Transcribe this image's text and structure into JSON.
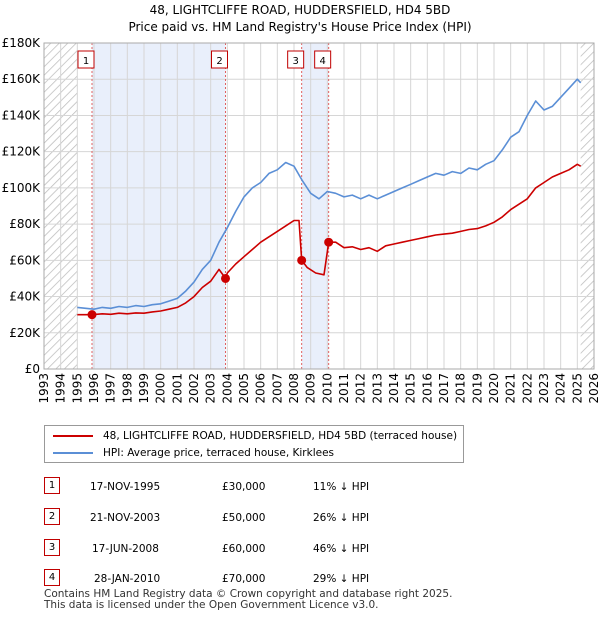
{
  "title_line1": "48, LIGHTCLIFFE ROAD, HUDDERSFIELD, HD4 5BD",
  "title_line2": "Price paid vs. HM Land Registry's House Price Index (HPI)",
  "legend": {
    "property_label": "48, LIGHTCLIFFE ROAD, HUDDERSFIELD, HD4 5BD (terraced house)",
    "hpi_label": "HPI: Average price, terraced house, Kirklees",
    "property_color": "#cc0000",
    "hpi_color": "#5b8fd6"
  },
  "transactions": [
    {
      "num": "1",
      "date": "17-NOV-1995",
      "price": "£30,000",
      "hpi": "11% ↓ HPI"
    },
    {
      "num": "2",
      "date": "21-NOV-2003",
      "price": "£50,000",
      "hpi": "26% ↓ HPI"
    },
    {
      "num": "3",
      "date": "17-JUN-2008",
      "price": "£60,000",
      "hpi": "46% ↓ HPI"
    },
    {
      "num": "4",
      "date": "28-JAN-2010",
      "price": "£70,000",
      "hpi": "29% ↓ HPI"
    }
  ],
  "footer_line1": "Contains HM Land Registry data © Crown copyright and database right 2025.",
  "footer_line2": "This data is licensed under the Open Government Licence v3.0.",
  "chart_data": {
    "type": "line",
    "title": "48, LIGHTCLIFFE ROAD, HUDDERSFIELD, HD4 5BD — Price paid vs. HM Land Registry's House Price Index (HPI)",
    "xlabel": "",
    "ylabel": "",
    "xlim": [
      1993,
      2026
    ],
    "ylim": [
      0,
      180000
    ],
    "x_ticks": [
      1993,
      1994,
      1995,
      1996,
      1997,
      1998,
      1999,
      2000,
      2001,
      2002,
      2003,
      2004,
      2005,
      2006,
      2007,
      2008,
      2009,
      2010,
      2011,
      2012,
      2013,
      2014,
      2015,
      2016,
      2017,
      2018,
      2019,
      2020,
      2021,
      2022,
      2023,
      2024,
      2025,
      2026
    ],
    "y_ticks": [
      0,
      20000,
      40000,
      60000,
      80000,
      100000,
      120000,
      140000,
      160000,
      180000
    ],
    "y_tick_labels": [
      "£0",
      "£20K",
      "£40K",
      "£60K",
      "£80K",
      "£100K",
      "£120K",
      "£140K",
      "£160K",
      "£180K"
    ],
    "hatched_ranges": [
      [
        1993,
        1995.0
      ],
      [
        2025.2,
        2026
      ]
    ],
    "shaded_ranges": [
      [
        1995.88,
        2003.89
      ],
      [
        2008.46,
        2010.08
      ]
    ],
    "series": [
      {
        "name": "HPI: Average price, terraced house, Kirklees",
        "color": "#5b8fd6",
        "x": [
          1995.0,
          1995.5,
          1996.0,
          1996.5,
          1997.0,
          1997.5,
          1998.0,
          1998.5,
          1999.0,
          1999.5,
          2000.0,
          2000.5,
          2001.0,
          2001.5,
          2002.0,
          2002.5,
          2003.0,
          2003.5,
          2004.0,
          2004.5,
          2005.0,
          2005.5,
          2006.0,
          2006.5,
          2007.0,
          2007.5,
          2008.0,
          2008.5,
          2009.0,
          2009.5,
          2010.0,
          2010.5,
          2011.0,
          2011.5,
          2012.0,
          2012.5,
          2013.0,
          2013.5,
          2014.0,
          2014.5,
          2015.0,
          2015.5,
          2016.0,
          2016.5,
          2017.0,
          2017.5,
          2018.0,
          2018.5,
          2019.0,
          2019.5,
          2020.0,
          2020.5,
          2021.0,
          2021.5,
          2022.0,
          2022.5,
          2023.0,
          2023.5,
          2024.0,
          2024.5,
          2025.0,
          2025.2
        ],
        "y": [
          34000,
          33500,
          33000,
          34000,
          33500,
          34500,
          34000,
          35000,
          34500,
          35500,
          36000,
          37500,
          39000,
          43000,
          48000,
          55000,
          60000,
          70000,
          78000,
          87000,
          95000,
          100000,
          103000,
          108000,
          110000,
          114000,
          112000,
          104000,
          97000,
          94000,
          98000,
          97000,
          95000,
          96000,
          94000,
          96000,
          94000,
          96000,
          98000,
          100000,
          102000,
          104000,
          106000,
          108000,
          107000,
          109000,
          108000,
          111000,
          110000,
          113000,
          115000,
          121000,
          128000,
          131000,
          140000,
          148000,
          143000,
          145000,
          150000,
          155000,
          160000,
          158000
        ]
      },
      {
        "name": "48, LIGHTCLIFFE ROAD, HUDDERSFIELD, HD4 5BD (terraced house)",
        "color": "#cc0000",
        "x": [
          1995.0,
          1995.88,
          1996.5,
          1997.0,
          1997.5,
          1998.0,
          1998.5,
          1999.0,
          1999.5,
          2000.0,
          2000.5,
          2001.0,
          2001.5,
          2002.0,
          2002.5,
          2003.0,
          2003.5,
          2003.89,
          2004.0,
          2004.5,
          2005.0,
          2005.5,
          2006.0,
          2006.5,
          2007.0,
          2007.5,
          2008.0,
          2008.3,
          2008.46,
          2008.8,
          2009.3,
          2009.8,
          2010.08,
          2010.5,
          2011.0,
          2011.5,
          2012.0,
          2012.5,
          2013.0,
          2013.5,
          2014.0,
          2014.5,
          2015.0,
          2015.5,
          2016.0,
          2016.5,
          2017.0,
          2017.5,
          2018.0,
          2018.5,
          2019.0,
          2019.5,
          2020.0,
          2020.5,
          2021.0,
          2021.5,
          2022.0,
          2022.5,
          2023.0,
          2023.5,
          2024.0,
          2024.5,
          2025.0,
          2025.2
        ],
        "y": [
          30000,
          30000,
          30500,
          30200,
          30800,
          30500,
          31000,
          30800,
          31500,
          32000,
          33000,
          34000,
          36500,
          40000,
          45000,
          48500,
          55000,
          50000,
          53000,
          58000,
          62000,
          66000,
          70000,
          73000,
          76000,
          79000,
          82000,
          82000,
          60000,
          56000,
          53000,
          52000,
          70000,
          70000,
          67000,
          67500,
          66000,
          67000,
          65000,
          68000,
          69000,
          70000,
          71000,
          72000,
          73000,
          74000,
          74500,
          75000,
          76000,
          77000,
          77500,
          79000,
          81000,
          84000,
          88000,
          91000,
          94000,
          100000,
          103000,
          106000,
          108000,
          110000,
          113000,
          112000
        ]
      }
    ],
    "markers": [
      {
        "label": "1",
        "x": 1995.88,
        "y": 30000
      },
      {
        "label": "2",
        "x": 2003.89,
        "y": 50000
      },
      {
        "label": "3",
        "x": 2008.46,
        "y": 60000
      },
      {
        "label": "4",
        "x": 2010.08,
        "y": 70000
      }
    ]
  }
}
